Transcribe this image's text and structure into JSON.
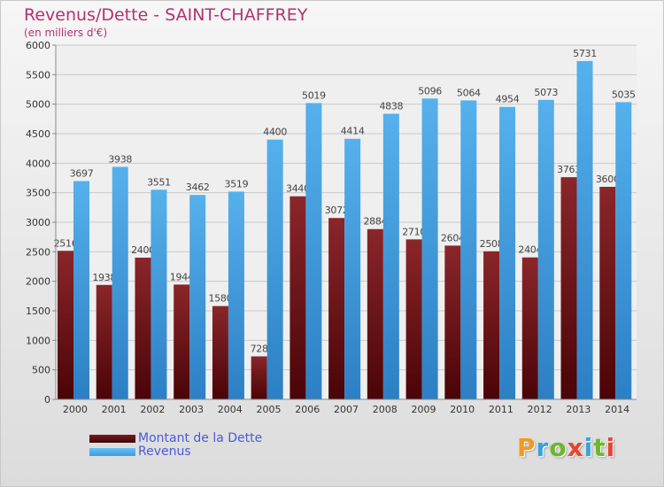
{
  "header": {
    "title": "Revenus/Dette - SAINT-CHAFFREY",
    "subtitle": "(en milliers d'€)"
  },
  "logo": {
    "text": "Proxiti",
    "colors": [
      "#f39a1e",
      "#3aa2dd",
      "#6fb62c",
      "#e8452c",
      "#3aa2dd",
      "#6fb62c",
      "#e8452c"
    ]
  },
  "colors": {
    "title": "#b1336e",
    "dette": "#7b1a1e",
    "revenus": "#3b9de0",
    "legend_text": "#4a5bd6"
  },
  "chart_data": {
    "type": "bar",
    "title": "Revenus/Dette - SAINT-CHAFFREY",
    "subtitle": "(en milliers d'€)",
    "categories": [
      "2000",
      "2001",
      "2002",
      "2003",
      "2004",
      "2005",
      "2006",
      "2007",
      "2008",
      "2009",
      "2010",
      "2011",
      "2012",
      "2013",
      "2014"
    ],
    "series": [
      {
        "name": "Montant de la Dette",
        "values": [
          2516,
          1938,
          2400,
          1944,
          1580,
          728,
          3440,
          3072,
          2884,
          2710,
          2604,
          2508,
          2404,
          3763,
          3600
        ],
        "labels": [
          "2516",
          "1938",
          "2400",
          "1944",
          "1580",
          "728",
          "3440",
          "3072",
          "2884",
          "2710",
          "2604",
          "2508",
          "2404",
          "3763",
          "3600"
        ]
      },
      {
        "name": "Revenus",
        "values": [
          3697,
          3938,
          3551,
          3462,
          3519,
          4400,
          5019,
          4414,
          4838,
          5096,
          5064,
          4954,
          5073,
          5731,
          5035
        ],
        "labels": [
          "3697",
          "3938",
          "3551",
          "3462",
          "3519",
          "4400",
          "5019",
          "4414",
          "4838",
          "5096",
          "5064",
          "4954",
          "5073",
          "5731",
          "5035"
        ]
      }
    ],
    "ylim": [
      0,
      6000
    ],
    "yticks": [
      0,
      500,
      1000,
      1500,
      2000,
      2500,
      3000,
      3500,
      4000,
      4500,
      5000,
      5500,
      6000
    ],
    "grid": true,
    "legend": "bottom-left"
  }
}
